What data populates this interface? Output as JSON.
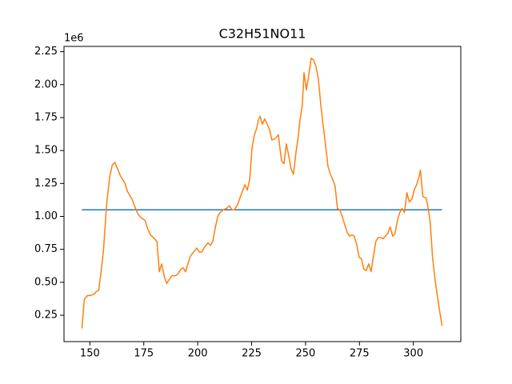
{
  "chart_data": {
    "type": "line",
    "title": "C32H51NO11",
    "y_offset_label": "1e6",
    "xlim": [
      138,
      322
    ],
    "ylim": [
      0.05,
      2.29
    ],
    "xticks": [
      150,
      175,
      200,
      225,
      250,
      275,
      300
    ],
    "yticks": [
      0.25,
      {
        "value": 0.5,
        "label": "0.50"
      },
      0.75,
      {
        "value": 1,
        "label": "1.00"
      },
      1.25,
      {
        "value": 1.5,
        "label": "1.50"
      },
      1.75,
      {
        "value": 2,
        "label": "2.00"
      },
      2.25
    ],
    "series": [
      {
        "color": "#1f77b4",
        "x": [
          146.3,
          313.3
        ],
        "values": [
          1.05,
          1.05
        ]
      },
      {
        "color": "#ff7f0e",
        "x": [
          146.3,
          147.4,
          148.9,
          150.4,
          151.9,
          153.0,
          154.1,
          155.2,
          156.3,
          157.0,
          157.8,
          158.5,
          159.3,
          160.4,
          161.5,
          162.6,
          164.1,
          165.2,
          166.3,
          167.4,
          168.5,
          169.6,
          170.7,
          172.2,
          173.7,
          175.6,
          176.7,
          178.1,
          180.0,
          181.1,
          182.2,
          183.3,
          184.4,
          185.6,
          186.7,
          188.1,
          189.6,
          190.7,
          192.2,
          193.3,
          194.4,
          195.6,
          196.7,
          198.1,
          199.6,
          200.7,
          201.9,
          203.3,
          204.8,
          205.9,
          207.0,
          208.1,
          209.3,
          210.4,
          211.9,
          213.3,
          214.8,
          215.9,
          217.0,
          218.5,
          219.6,
          220.7,
          221.9,
          223.0,
          224.1,
          225.2,
          226.3,
          227.4,
          228.1,
          228.9,
          230.0,
          231.1,
          232.2,
          233.3,
          234.4,
          235.9,
          237.4,
          238.1,
          238.9,
          240.0,
          241.1,
          242.2,
          243.3,
          244.4,
          245.6,
          246.7,
          247.4,
          248.5,
          249.3,
          250.4,
          251.5,
          252.6,
          253.7,
          254.8,
          255.9,
          257.0,
          258.1,
          259.3,
          260.4,
          261.5,
          262.6,
          263.7,
          264.8,
          265.9,
          267.0,
          268.1,
          269.3,
          270.4,
          271.5,
          272.6,
          273.7,
          274.8,
          275.9,
          277.0,
          278.1,
          279.3,
          280.4,
          281.5,
          282.6,
          283.7,
          284.8,
          285.9,
          287.0,
          288.1,
          289.3,
          290.4,
          291.5,
          292.6,
          293.7,
          294.8,
          295.9,
          297.0,
          298.1,
          299.3,
          300.4,
          301.5,
          302.6,
          303.3,
          304.4,
          305.9,
          306.7,
          307.8,
          308.9,
          310.0,
          311.1,
          312.2,
          313.3
        ],
        "values": [
          0.15,
          0.37,
          0.4,
          0.4,
          0.41,
          0.43,
          0.44,
          0.58,
          0.74,
          0.91,
          1.1,
          1.2,
          1.31,
          1.39,
          1.41,
          1.37,
          1.31,
          1.28,
          1.25,
          1.19,
          1.16,
          1.13,
          1.08,
          1.02,
          0.99,
          0.97,
          0.91,
          0.86,
          0.83,
          0.81,
          0.58,
          0.64,
          0.55,
          0.49,
          0.52,
          0.55,
          0.55,
          0.56,
          0.6,
          0.61,
          0.58,
          0.65,
          0.7,
          0.73,
          0.76,
          0.73,
          0.73,
          0.77,
          0.8,
          0.78,
          0.81,
          0.91,
          1.0,
          1.03,
          1.05,
          1.06,
          1.08,
          1.05,
          1.05,
          1.09,
          1.14,
          1.19,
          1.24,
          1.2,
          1.28,
          1.52,
          1.62,
          1.67,
          1.73,
          1.76,
          1.7,
          1.74,
          1.7,
          1.66,
          1.58,
          1.59,
          1.62,
          1.52,
          1.42,
          1.4,
          1.55,
          1.46,
          1.36,
          1.32,
          1.49,
          1.61,
          1.73,
          1.84,
          2.09,
          1.96,
          2.07,
          2.2,
          2.19,
          2.14,
          2.05,
          1.86,
          1.7,
          1.54,
          1.38,
          1.32,
          1.28,
          1.23,
          1.06,
          1.05,
          1.0,
          0.94,
          0.88,
          0.85,
          0.86,
          0.85,
          0.79,
          0.69,
          0.68,
          0.6,
          0.59,
          0.64,
          0.58,
          0.7,
          0.81,
          0.84,
          0.84,
          0.83,
          0.85,
          0.87,
          0.92,
          0.85,
          0.87,
          0.97,
          1.03,
          1.06,
          1.03,
          1.18,
          1.11,
          1.13,
          1.2,
          1.24,
          1.3,
          1.35,
          1.15,
          1.14,
          1.08,
          0.96,
          0.69,
          0.53,
          0.4,
          0.28,
          0.17
        ]
      }
    ]
  }
}
